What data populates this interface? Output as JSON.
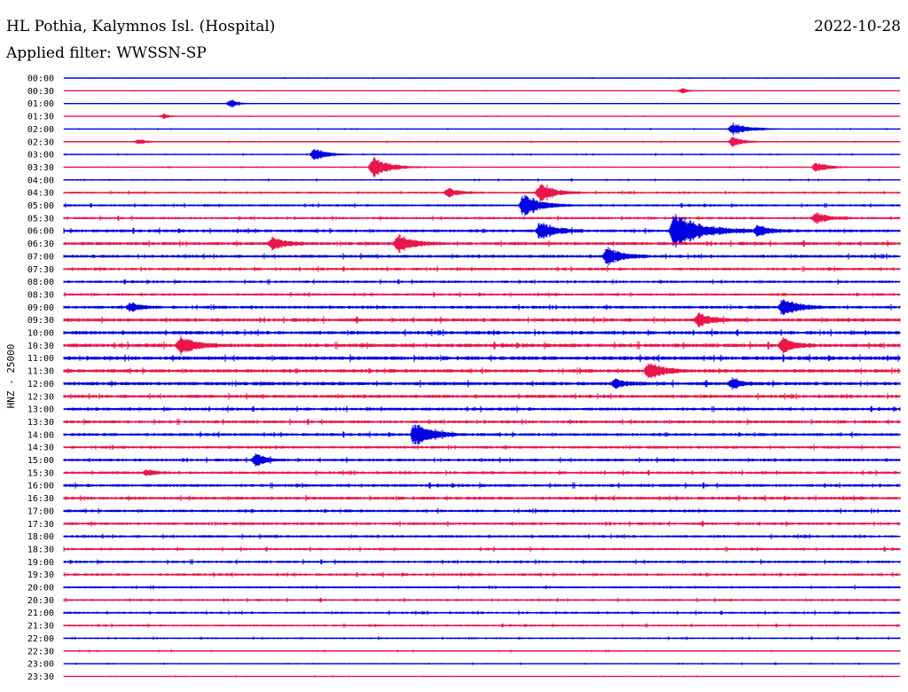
{
  "header": {
    "station": "HL Pothia, Kalymnos Isl. (Hospital)",
    "date": "2022-10-28",
    "filter": "Applied filter: WWSSN-SP"
  },
  "chart_data": {
    "type": "line",
    "channel_label": "HNZ - 25000",
    "colors": [
      "#0000e0",
      "#e8164a"
    ],
    "rows": [
      "00:00",
      "00:30",
      "01:00",
      "01:30",
      "02:00",
      "02:30",
      "03:00",
      "03:30",
      "04:00",
      "04:30",
      "05:00",
      "05:30",
      "06:00",
      "06:30",
      "07:00",
      "07:30",
      "08:00",
      "08:30",
      "09:00",
      "09:30",
      "10:00",
      "10:30",
      "11:00",
      "11:30",
      "12:00",
      "12:30",
      "13:00",
      "13:30",
      "14:00",
      "14:30",
      "15:00",
      "15:30",
      "16:00",
      "16:30",
      "17:00",
      "17:30",
      "18:00",
      "18:30",
      "19:00",
      "19:30",
      "20:00",
      "20:30",
      "21:00",
      "21:30",
      "22:00",
      "22:30",
      "23:00",
      "23:30"
    ],
    "noise": [
      0.3,
      0.3,
      0.3,
      0.3,
      0.4,
      0.4,
      0.5,
      0.5,
      0.6,
      0.8,
      0.9,
      1.0,
      1.2,
      1.3,
      1.2,
      1.1,
      1.0,
      1.0,
      1.2,
      1.4,
      1.4,
      1.5,
      1.5,
      1.4,
      1.4,
      1.3,
      1.2,
      1.2,
      1.2,
      1.1,
      1.1,
      1.1,
      1.2,
      1.2,
      1.1,
      1.1,
      1.0,
      1.0,
      1.0,
      1.0,
      0.9,
      0.9,
      0.9,
      0.8,
      0.7,
      0.6,
      0.5,
      0.4
    ],
    "events": [
      [
        1,
        0.74,
        5,
        0.7
      ],
      [
        2,
        0.2,
        6,
        0.9
      ],
      [
        3,
        0.12,
        5,
        0.6
      ],
      [
        4,
        0.8,
        14,
        0.5
      ],
      [
        5,
        0.09,
        8,
        0.4
      ],
      [
        5,
        0.8,
        10,
        0.6
      ],
      [
        6,
        0.3,
        10,
        0.8
      ],
      [
        7,
        0.37,
        14,
        0.9
      ],
      [
        7,
        0.9,
        10,
        0.6
      ],
      [
        9,
        0.46,
        10,
        0.5
      ],
      [
        9,
        0.57,
        12,
        0.9
      ],
      [
        10,
        0.55,
        14,
        1.0
      ],
      [
        11,
        0.9,
        10,
        0.6
      ],
      [
        12,
        0.57,
        12,
        0.9
      ],
      [
        12,
        0.73,
        22,
        1.0
      ],
      [
        12,
        0.83,
        10,
        0.7
      ],
      [
        13,
        0.25,
        10,
        0.8
      ],
      [
        13,
        0.4,
        12,
        0.9
      ],
      [
        14,
        0.65,
        12,
        0.9
      ],
      [
        18,
        0.08,
        8,
        0.7
      ],
      [
        18,
        0.86,
        12,
        0.9
      ],
      [
        19,
        0.76,
        10,
        0.8
      ],
      [
        21,
        0.14,
        12,
        0.9
      ],
      [
        21,
        0.86,
        10,
        0.8
      ],
      [
        23,
        0.7,
        12,
        0.9
      ],
      [
        24,
        0.66,
        8,
        0.6
      ],
      [
        24,
        0.8,
        8,
        0.7
      ],
      [
        28,
        0.42,
        14,
        1.0
      ],
      [
        30,
        0.23,
        8,
        0.9
      ],
      [
        31,
        0.1,
        7,
        0.5
      ]
    ]
  }
}
